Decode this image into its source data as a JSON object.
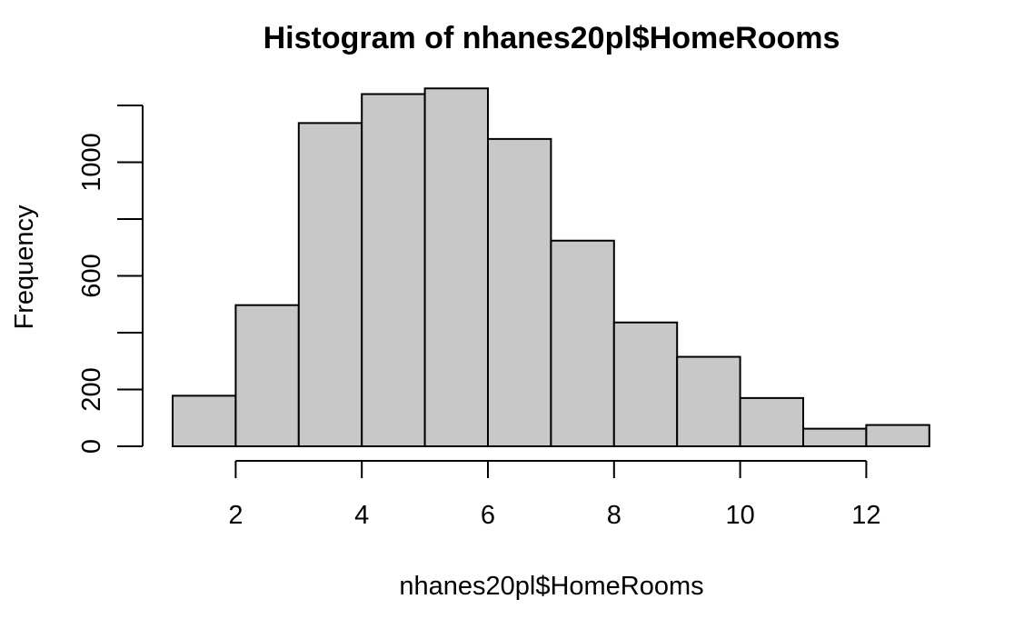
{
  "chart_data": {
    "type": "bar",
    "title": "Histogram of nhanes20pl$HomeRooms",
    "xlabel": "nhanes20pl$HomeRooms",
    "ylabel": "Frequency",
    "bin_edges": [
      1,
      2,
      3,
      4,
      5,
      6,
      7,
      8,
      9,
      10,
      11,
      12,
      13
    ],
    "values": [
      178,
      497,
      1138,
      1240,
      1260,
      1082,
      724,
      436,
      315,
      170,
      62,
      75
    ],
    "xlim": [
      1,
      13
    ],
    "ylim": [
      0,
      1200
    ],
    "x_ticks": [
      2,
      4,
      6,
      8,
      10,
      12
    ],
    "x_tick_labels": [
      "2",
      "4",
      "6",
      "8",
      "10",
      "12"
    ],
    "y_ticks": [
      0,
      200,
      400,
      600,
      800,
      1000,
      1200
    ],
    "y_tick_labels": [
      "0",
      "200",
      "",
      "600",
      "",
      "1000",
      ""
    ],
    "bar_color": "#c8c8c8",
    "grid": false,
    "legend": "none"
  }
}
